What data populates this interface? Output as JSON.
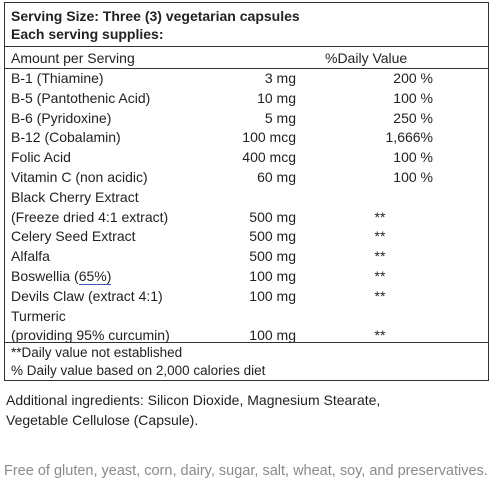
{
  "header": {
    "line1": "Serving Size: Three (3) vegetarian capsules",
    "line2": "Each serving supplies:"
  },
  "columns": {
    "amount": "Amount per Serving",
    "dv": "%Daily Value"
  },
  "rows": [
    {
      "name": "B-1 (Thiamine)",
      "amount": "3 mg",
      "dv": "200 %"
    },
    {
      "name": "B-5 (Pantothenic Acid)",
      "amount": "10 mg",
      "dv": "100 %"
    },
    {
      "name": "B-6 (Pyridoxine)",
      "amount": "5 mg",
      "dv": "250 %"
    },
    {
      "name": "B-12 (Cobalamin)",
      "amount": "100 mcg",
      "dv": "1,666%"
    },
    {
      "name": "Folic Acid",
      "amount": "400 mcg",
      "dv": "100 %"
    },
    {
      "name": "Vitamin C (non acidic)",
      "amount": "60 mg",
      "dv": "100 %"
    },
    {
      "name": "Black Cherry Extract",
      "amount": "",
      "dv": ""
    },
    {
      "name": "(Freeze dried 4:1 extract)",
      "amount": "500 mg",
      "dv": "**"
    },
    {
      "name": "Celery Seed Extract",
      "amount": "500 mg",
      "dv": "**"
    },
    {
      "name": "Alfalfa",
      "amount": "500 mg",
      "dv": "**"
    },
    {
      "name": "Boswellia (65%)",
      "amount": "100 mg",
      "dv": "**"
    },
    {
      "name": "Devils Claw (extract 4:1)",
      "amount": "100 mg",
      "dv": "**"
    },
    {
      "name": "Turmeric",
      "amount": "",
      "dv": ""
    },
    {
      "name": "(providing 95% curcumin)",
      "amount": "100 mg",
      "dv": "**"
    }
  ],
  "footnotes": {
    "line1": "**Daily value not established",
    "line2": "% Daily value based on 2,000 calories diet"
  },
  "additional": {
    "line1": "Additional ingredients: Silicon Dioxide, Magnesium Stearate,",
    "line2": "Vegetable Cellulose (Capsule)."
  },
  "free_of": "Free of gluten, yeast, corn, dairy, sugar, salt, wheat, soy, and preservatives."
}
